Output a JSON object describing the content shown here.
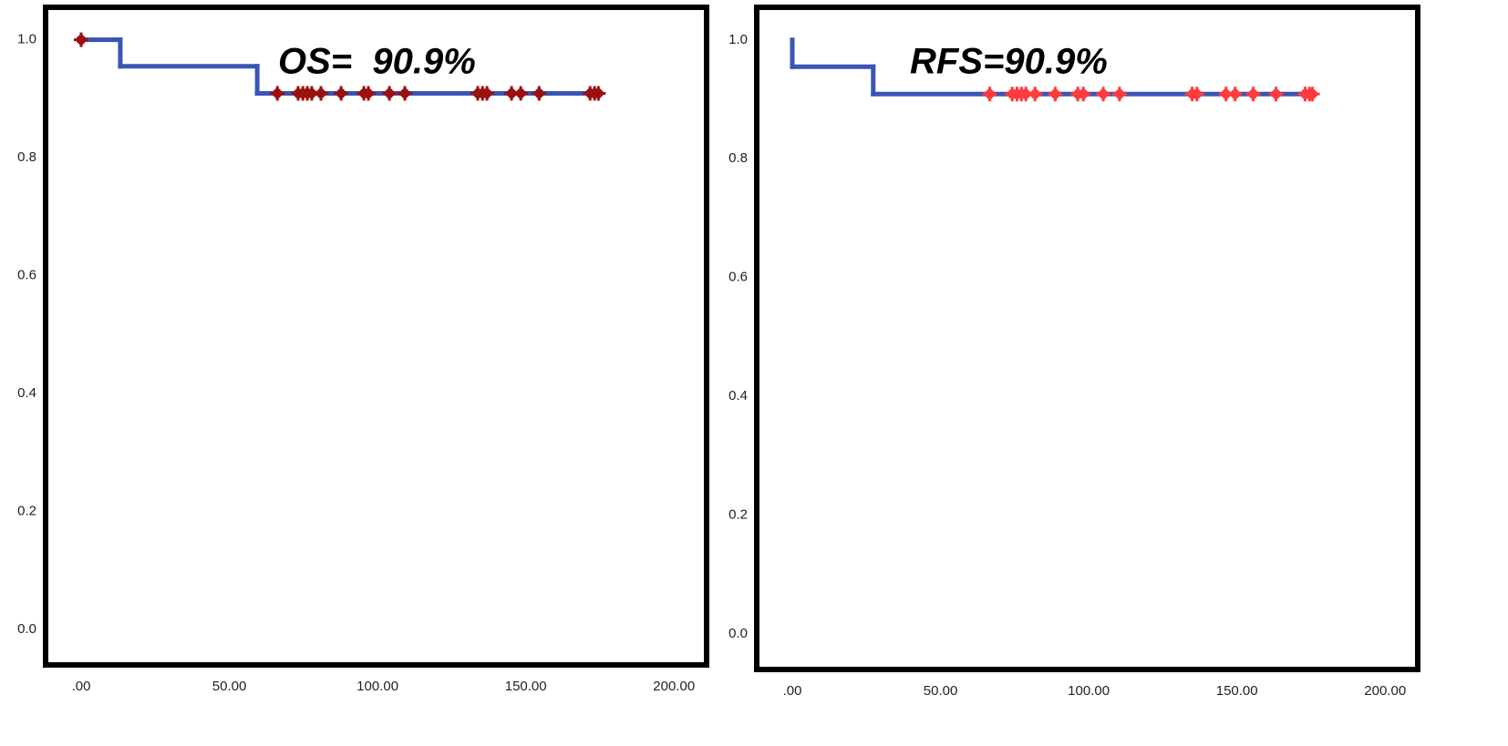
{
  "chart_data": [
    {
      "type": "step",
      "annotation": "OS=  90.9%",
      "xlim": [
        -12,
        211
      ],
      "ylim": [
        -0.06,
        1.055
      ],
      "xticks": [
        {
          "value": 0,
          "label": ".00"
        },
        {
          "value": 50,
          "label": "50.00"
        },
        {
          "value": 100,
          "label": "100.00"
        },
        {
          "value": 150,
          "label": "150.00"
        },
        {
          "value": 200,
          "label": "200.00"
        }
      ],
      "yticks": [
        {
          "value": 0,
          "label": "0.0"
        },
        0.2,
        0.4,
        0.6,
        0.8,
        {
          "value": 1,
          "label": "1.0"
        }
      ],
      "grid": false,
      "series": [
        {
          "style": "step",
          "color": "#3a55b5",
          "x": [
            0,
            13.2,
            59.4,
            175
          ],
          "values": [
            1,
            0.955,
            0.909,
            0.909
          ]
        },
        {
          "style": "marker",
          "color": "#9b1111",
          "x": [
            0,
            66.2,
            73.2,
            74.8,
            76.3,
            77.8,
            80.9,
            87.7,
            95.4,
            96.9,
            104,
            109.2,
            133.8,
            135.4,
            136.9,
            145.2,
            148.3,
            154.5,
            171.7,
            173.2,
            174.5
          ],
          "values": [
            1,
            0.909,
            0.909,
            0.909,
            0.909,
            0.909,
            0.909,
            0.909,
            0.909,
            0.909,
            0.909,
            0.909,
            0.909,
            0.909,
            0.909,
            0.909,
            0.909,
            0.909,
            0.909,
            0.909,
            0.909
          ]
        }
      ]
    },
    {
      "type": "step",
      "annotation": "RFS=90.9%",
      "xlim": [
        -12,
        211
      ],
      "ylim": [
        -0.06,
        1.055
      ],
      "xticks": [
        {
          "value": 0,
          "label": ".00"
        },
        {
          "value": 50,
          "label": "50.00"
        },
        {
          "value": 100,
          "label": "100.00"
        },
        {
          "value": 150,
          "label": "150.00"
        },
        {
          "value": 200,
          "label": "200.00"
        }
      ],
      "yticks": [
        {
          "value": 0,
          "label": "0.0"
        },
        0.2,
        0.4,
        0.6,
        0.8,
        {
          "value": 1,
          "label": "1.0"
        }
      ],
      "grid": false,
      "series": [
        {
          "style": "step",
          "color": "#3a55b5",
          "x": [
            0,
            0,
            27.3,
            175.5
          ],
          "values": [
            1,
            0.955,
            0.909,
            0.909
          ]
        },
        {
          "style": "marker",
          "color": "#ff3b3b",
          "x": [
            66.6,
            74.2,
            75.8,
            77.3,
            78.8,
            81.9,
            88.7,
            96.3,
            98.2,
            104.9,
            110.4,
            134.9,
            136.5,
            146.3,
            149.4,
            155.5,
            163.2,
            173,
            174.5,
            175.5
          ],
          "values": [
            0.909,
            0.909,
            0.909,
            0.909,
            0.909,
            0.909,
            0.909,
            0.909,
            0.909,
            0.909,
            0.909,
            0.909,
            0.909,
            0.909,
            0.909,
            0.909,
            0.909,
            0.909,
            0.909,
            0.909
          ]
        }
      ]
    }
  ]
}
